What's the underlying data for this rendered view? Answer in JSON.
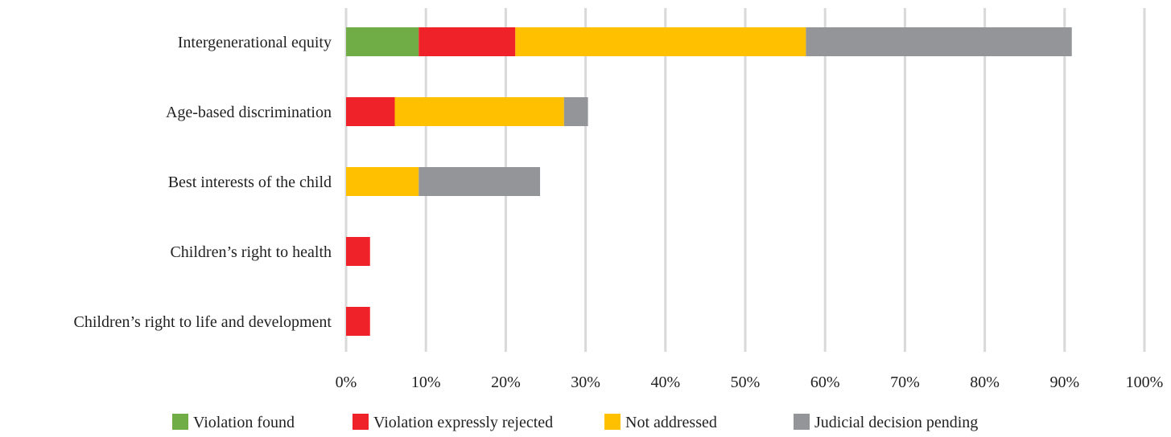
{
  "chart_data": {
    "type": "bar",
    "orientation": "horizontal",
    "stacked": true,
    "categories": [
      "Intergenerational equity",
      "Age-based discrimination",
      "Best interests of the child",
      "Children’s right to health",
      "Children’s right to life and development"
    ],
    "series": [
      {
        "name": "Violation found",
        "color": "#70ad47",
        "values": [
          9.1,
          0,
          0,
          0,
          0
        ]
      },
      {
        "name": "Violation expressly rejected",
        "color": "#ee2228",
        "values": [
          12.1,
          6.1,
          0,
          3.0,
          3.0
        ]
      },
      {
        "name": "Not addressed",
        "color": "#ffc000",
        "values": [
          36.4,
          21.2,
          9.1,
          0,
          0
        ]
      },
      {
        "name": "Judicial decision pending",
        "color": "#939598",
        "values": [
          33.3,
          3.0,
          15.2,
          0,
          0
        ]
      }
    ],
    "xlim": [
      0,
      100
    ],
    "xticks": [
      0,
      10,
      20,
      30,
      40,
      50,
      60,
      70,
      80,
      90,
      100
    ],
    "tick_suffix": "%",
    "grid": true,
    "legend_position": "bottom"
  }
}
